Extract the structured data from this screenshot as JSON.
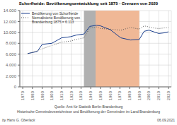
{
  "chart_data": {
    "type": "line",
    "title": "Schorfheide: Bevölkerungsentwicklung seit 1875 - Grenzen von 2020",
    "x": [
      1875,
      1880,
      1885,
      1890,
      1895,
      1900,
      1905,
      1910,
      1919,
      1925,
      1933,
      1939,
      1946,
      1950,
      1960,
      1971,
      1981,
      1990,
      1995,
      2000,
      2005,
      2010,
      2015,
      2020
    ],
    "series": [
      {
        "name": "Bevölkerung von Schorfheide",
        "color": "#1a3f8f",
        "line_style": "solid",
        "values": [
          6113,
          6300,
          6500,
          7800,
          7900,
          8000,
          8500,
          9000,
          9200,
          9500,
          9700,
          11100,
          11300,
          11200,
          10500,
          9000,
          8600,
          8700,
          10200,
          10400,
          10100,
          9800,
          9900,
          10100
        ]
      },
      {
        "name": "Normalisierte Bevölkerung von\nBrandenburg 1875 = 6.113",
        "color": "#555555",
        "line_style": "dotted",
        "values": [
          6113,
          6350,
          6600,
          7000,
          7300,
          7600,
          7900,
          8200,
          8400,
          8700,
          9000,
          10800,
          11000,
          10700,
          10600,
          10400,
          10900,
          10600,
          11200,
          11000,
          10800,
          10700,
          10800,
          10900
        ]
      }
    ],
    "xlim": [
      1867,
      2023
    ],
    "xticks": [
      1870,
      1880,
      1890,
      1900,
      1910,
      1920,
      1930,
      1940,
      1950,
      1960,
      1970,
      1980,
      1990,
      2000,
      2010,
      2020
    ],
    "ylim": [
      0,
      14000
    ],
    "yticks": [
      0,
      {
        "value": 2000,
        "label": "2.000"
      },
      {
        "value": 4000,
        "label": "4.000"
      },
      {
        "value": 6000,
        "label": "6.000"
      },
      {
        "value": 8000,
        "label": "8.000"
      },
      {
        "value": 10000,
        "label": "10.000"
      },
      {
        "value": 12000,
        "label": "12.000"
      },
      {
        "value": 14000,
        "label": "14.000"
      }
    ],
    "grid": true,
    "legend": "upper left",
    "spans": [
      {
        "range": [
          1933,
          1945
        ],
        "color": "#b0b0b0"
      },
      {
        "range": [
          1945,
          1990
        ],
        "color": "#f0b896"
      }
    ],
    "annotations": [
      "Quelle: Amt für Statistik Berlin-Brandenburg",
      "Historische Gemeindevezeichnisse und Bevölkerung der Gemeinden im Land Brandenburg",
      "by Hans G. Oberlack",
      "06.09.2021"
    ]
  }
}
